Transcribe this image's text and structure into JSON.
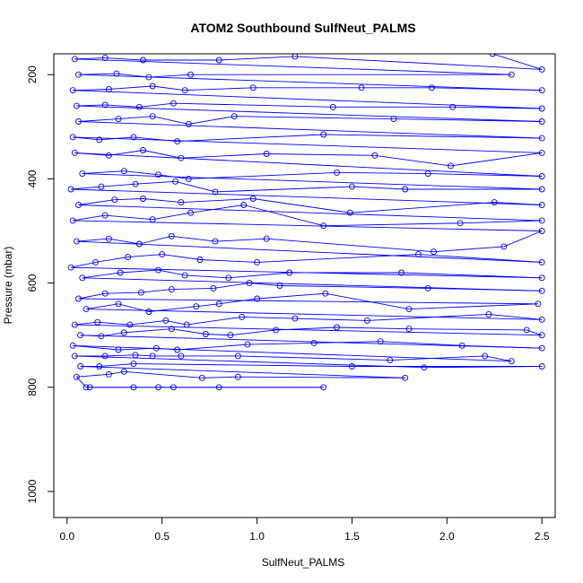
{
  "chart_data": {
    "type": "line",
    "title": "ATOM2 Southbound SulfNeut_PALMS",
    "xlabel": "SulfNeut_PALMS",
    "ylabel": "Pressure (mbar)",
    "xlim": [
      -0.07,
      2.57
    ],
    "ylim": [
      1050,
      160
    ],
    "y_reversed": true,
    "x_ticks": [
      0.0,
      0.5,
      1.0,
      1.5,
      2.0,
      2.5
    ],
    "x_tick_labels": [
      "0.0",
      "0.5",
      "1.0",
      "1.5",
      "2.0",
      "2.5"
    ],
    "y_ticks": [
      200,
      400,
      600,
      800,
      1000
    ],
    "y_tick_labels": [
      "200",
      "400",
      "600",
      "800",
      "1000"
    ],
    "grid": false,
    "legend": "none",
    "series": [
      {
        "color": "#0000FF",
        "marker": "open-circle",
        "points": [
          [
            0.12,
            800
          ],
          [
            0.35,
            800
          ],
          [
            0.48,
            800
          ],
          [
            0.56,
            800
          ],
          [
            0.8,
            800
          ],
          [
            1.35,
            800
          ],
          [
            0.1,
            800
          ],
          [
            0.05,
            780
          ],
          [
            0.22,
            775
          ],
          [
            0.3,
            770
          ],
          [
            0.71,
            782
          ],
          [
            0.9,
            780
          ],
          [
            1.78,
            782
          ],
          [
            0.07,
            760
          ],
          [
            0.17,
            760
          ],
          [
            0.35,
            755
          ],
          [
            1.5,
            760
          ],
          [
            2.5,
            760
          ],
          [
            1.88,
            762
          ],
          [
            0.04,
            740
          ],
          [
            0.2,
            740
          ],
          [
            0.36,
            738
          ],
          [
            0.45,
            740
          ],
          [
            0.6,
            740
          ],
          [
            0.9,
            740
          ],
          [
            1.7,
            748
          ],
          [
            2.2,
            740
          ],
          [
            2.34,
            750
          ],
          [
            0.03,
            720
          ],
          [
            0.27,
            728
          ],
          [
            0.47,
            725
          ],
          [
            0.58,
            728
          ],
          [
            0.95,
            718
          ],
          [
            1.3,
            715
          ],
          [
            1.65,
            712
          ],
          [
            2.08,
            720
          ],
          [
            2.5,
            725
          ],
          [
            0.07,
            700
          ],
          [
            0.18,
            702
          ],
          [
            0.3,
            695
          ],
          [
            0.55,
            688
          ],
          [
            0.73,
            698
          ],
          [
            0.86,
            700
          ],
          [
            1.1,
            690
          ],
          [
            1.42,
            685
          ],
          [
            1.8,
            688
          ],
          [
            2.42,
            690
          ],
          [
            2.5,
            700
          ],
          [
            0.04,
            680
          ],
          [
            0.16,
            675
          ],
          [
            0.33,
            680
          ],
          [
            0.52,
            672
          ],
          [
            0.63,
            680
          ],
          [
            0.92,
            665
          ],
          [
            1.2,
            668
          ],
          [
            1.58,
            672
          ],
          [
            2.22,
            660
          ],
          [
            2.5,
            670
          ],
          [
            0.1,
            650
          ],
          [
            0.27,
            640
          ],
          [
            0.43,
            655
          ],
          [
            0.68,
            645
          ],
          [
            0.8,
            640
          ],
          [
            1.0,
            630
          ],
          [
            1.36,
            620
          ],
          [
            1.8,
            650
          ],
          [
            2.48,
            640
          ],
          [
            0.06,
            630
          ],
          [
            0.2,
            620
          ],
          [
            0.39,
            618
          ],
          [
            0.55,
            612
          ],
          [
            0.77,
            610
          ],
          [
            0.96,
            600
          ],
          [
            1.12,
            605
          ],
          [
            1.9,
            610
          ],
          [
            2.5,
            615
          ],
          [
            0.08,
            590
          ],
          [
            0.28,
            580
          ],
          [
            0.48,
            575
          ],
          [
            0.62,
            585
          ],
          [
            0.85,
            590
          ],
          [
            1.17,
            580
          ],
          [
            1.76,
            580
          ],
          [
            2.5,
            590
          ],
          [
            0.02,
            570
          ],
          [
            0.15,
            560
          ],
          [
            0.32,
            550
          ],
          [
            0.5,
            545
          ],
          [
            0.7,
            555
          ],
          [
            1.0,
            560
          ],
          [
            1.85,
            545
          ],
          [
            2.5,
            560
          ],
          [
            0.05,
            520
          ],
          [
            0.22,
            515
          ],
          [
            0.38,
            525
          ],
          [
            0.55,
            510
          ],
          [
            0.78,
            520
          ],
          [
            1.05,
            515
          ],
          [
            1.93,
            540
          ],
          [
            2.3,
            530
          ],
          [
            2.5,
            500
          ],
          [
            0.03,
            480
          ],
          [
            0.2,
            470
          ],
          [
            0.45,
            478
          ],
          [
            0.65,
            465
          ],
          [
            0.93,
            450
          ],
          [
            1.35,
            490
          ],
          [
            2.07,
            485
          ],
          [
            2.5,
            480
          ],
          [
            0.06,
            450
          ],
          [
            0.25,
            440
          ],
          [
            0.4,
            438
          ],
          [
            0.6,
            445
          ],
          [
            0.98,
            438
          ],
          [
            1.49,
            465
          ],
          [
            2.25,
            445
          ],
          [
            2.5,
            450
          ],
          [
            0.02,
            420
          ],
          [
            0.18,
            415
          ],
          [
            0.36,
            410
          ],
          [
            0.57,
            405
          ],
          [
            0.78,
            425
          ],
          [
            1.5,
            415
          ],
          [
            1.78,
            420
          ],
          [
            2.5,
            420
          ],
          [
            0.08,
            390
          ],
          [
            0.3,
            385
          ],
          [
            0.48,
            392
          ],
          [
            0.64,
            400
          ],
          [
            1.42,
            388
          ],
          [
            1.9,
            390
          ],
          [
            2.5,
            395
          ],
          [
            0.04,
            350
          ],
          [
            0.22,
            355
          ],
          [
            0.4,
            345
          ],
          [
            0.6,
            360
          ],
          [
            1.05,
            352
          ],
          [
            1.62,
            355
          ],
          [
            2.02,
            375
          ],
          [
            2.5,
            350
          ],
          [
            0.03,
            320
          ],
          [
            0.17,
            325
          ],
          [
            0.35,
            320
          ],
          [
            0.58,
            328
          ],
          [
            1.35,
            315
          ],
          [
            2.5,
            322
          ],
          [
            0.06,
            290
          ],
          [
            0.27,
            285
          ],
          [
            0.45,
            280
          ],
          [
            0.64,
            295
          ],
          [
            0.88,
            280
          ],
          [
            1.72,
            285
          ],
          [
            2.5,
            290
          ],
          [
            0.05,
            260
          ],
          [
            0.2,
            258
          ],
          [
            0.38,
            262
          ],
          [
            0.56,
            255
          ],
          [
            1.4,
            262
          ],
          [
            2.03,
            262
          ],
          [
            2.5,
            265
          ],
          [
            0.03,
            230
          ],
          [
            0.22,
            228
          ],
          [
            0.45,
            222
          ],
          [
            0.62,
            230
          ],
          [
            0.98,
            225
          ],
          [
            1.55,
            225
          ],
          [
            1.92,
            225
          ],
          [
            2.5,
            230
          ],
          [
            0.06,
            200
          ],
          [
            0.26,
            198
          ],
          [
            0.43,
            205
          ],
          [
            0.65,
            200
          ],
          [
            2.34,
            200
          ],
          [
            0.04,
            170
          ],
          [
            0.2,
            168
          ],
          [
            0.4,
            172
          ],
          [
            0.8,
            172
          ],
          [
            1.2,
            165
          ],
          [
            2.5,
            190
          ],
          [
            2.24,
            160
          ]
        ]
      }
    ]
  }
}
